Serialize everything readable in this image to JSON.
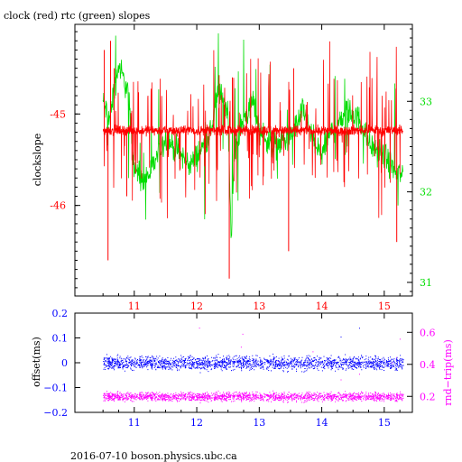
{
  "title": "clock (red) rtc (green) slopes",
  "footer": "2016-07-10  boson.physics.ubc.ca",
  "colors": {
    "red": "#ff0000",
    "green": "#00dd00",
    "blue": "#0000ff",
    "magenta": "#ff00ff",
    "axis": "#000000"
  },
  "chart_data": [
    {
      "type": "line",
      "title": "clock (red) rtc (green) slopes",
      "ylabel": "clockslope",
      "xlim": [
        10.05,
        15.45
      ],
      "xticks": [
        11,
        12,
        13,
        14,
        15
      ],
      "xtick_labels": [
        "11",
        "12",
        "13",
        "14",
        "15"
      ],
      "ylim_left": [
        -46.99,
        -44.02
      ],
      "yticks_left": [
        -45,
        -46
      ],
      "yticks_left_labels": [
        "-45",
        "-46"
      ],
      "ylim_right": [
        30.85,
        33.85
      ],
      "yticks_right": [
        33,
        32,
        31
      ],
      "yticks_right_labels": [
        "33",
        "32",
        "31"
      ],
      "series": [
        {
          "color": "green",
          "axis": "right",
          "x_start": 10.5,
          "x_end": 15.3,
          "x_knots": [
            10.5,
            10.6,
            10.75,
            10.9,
            11.0,
            11.1,
            11.25,
            11.5,
            11.75,
            11.9,
            12.0,
            12.1,
            12.2,
            12.35,
            12.5,
            12.55,
            12.6,
            12.75,
            12.9,
            13.0,
            13.2,
            13.5,
            13.7,
            13.9,
            14.0,
            14.1,
            14.2,
            14.4,
            14.6,
            14.8,
            15.0,
            15.2,
            15.3
          ],
          "y_knots": [
            33.0,
            32.8,
            33.4,
            33.1,
            32.3,
            32.1,
            32.2,
            32.6,
            32.4,
            32.3,
            32.4,
            32.5,
            32.6,
            33.1,
            32.9,
            31.5,
            32.4,
            32.8,
            33.0,
            32.7,
            32.5,
            32.6,
            32.9,
            32.5,
            32.4,
            32.6,
            32.7,
            32.9,
            32.8,
            32.5,
            32.4,
            32.2,
            32.2
          ]
        },
        {
          "color": "red",
          "axis": "left",
          "x_start": 10.5,
          "x_end": 15.3,
          "baseline": -45.18,
          "x_spikes": [
            10.52,
            10.58,
            10.62,
            10.68,
            10.88,
            12.52,
            12.57,
            13.47,
            13.55,
            15.2
          ],
          "y_spikes": [
            -44.3,
            -46.6,
            -44.2,
            -44.5,
            -45.9,
            -46.8,
            -44.6,
            -46.5,
            -44.5,
            -46.4
          ]
        }
      ]
    },
    {
      "type": "scatter",
      "ylabel_left": "offset(ms)",
      "ylabel_right": "rnd−trip(ms)",
      "xlim": [
        10.05,
        15.45
      ],
      "xticks": [
        11,
        12,
        13,
        14,
        15
      ],
      "xtick_labels": [
        "11",
        "12",
        "13",
        "14",
        "15"
      ],
      "ylim_left": [
        -0.2,
        0.2
      ],
      "yticks_left": [
        0.2,
        0.1,
        0,
        -0.1,
        -0.2
      ],
      "yticks_left_labels": [
        "0.2",
        "0.1",
        "0",
        "−0.1",
        "−0.2"
      ],
      "ylim_right": [
        0.1,
        0.72
      ],
      "yticks_right": [
        0.6,
        0.4,
        0.2
      ],
      "yticks_right_labels": [
        "0.6",
        "0.4",
        "0.2"
      ],
      "series": [
        {
          "color": "blue",
          "axis": "left",
          "x_start": 10.5,
          "x_end": 15.3,
          "center": 0.0,
          "spread": 0.04
        },
        {
          "color": "magenta",
          "axis": "right",
          "x_start": 10.5,
          "x_end": 15.3,
          "center": 0.2,
          "spread": 0.04
        }
      ]
    }
  ]
}
